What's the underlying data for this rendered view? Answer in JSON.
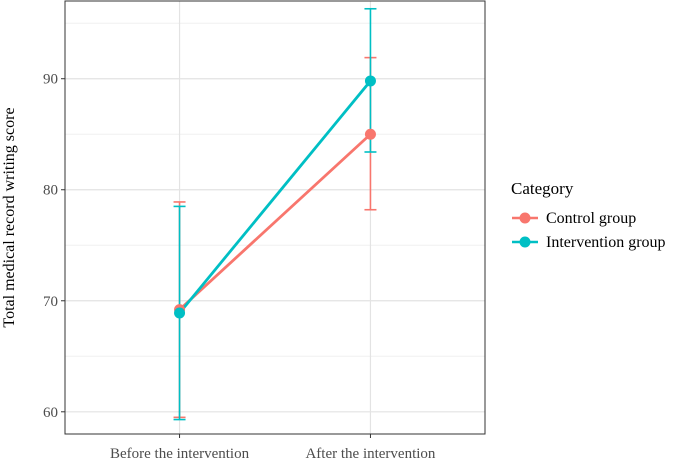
{
  "chart_data": {
    "type": "line",
    "title": "",
    "xlabel": "",
    "ylabel": "Total medical record writing score",
    "categories": [
      "Before the intervention",
      "After the intervention"
    ],
    "ylim": [
      58,
      97
    ],
    "yticks": [
      60,
      70,
      80,
      90
    ],
    "grid": true,
    "legend_title": "Category",
    "legend_position": "right",
    "series": [
      {
        "name": "Control group",
        "color": "#F8766D",
        "values": [
          69.2,
          85.0
        ],
        "error_low": [
          59.5,
          78.2
        ],
        "error_high": [
          78.9,
          91.9
        ]
      },
      {
        "name": "Intervention group",
        "color": "#00BFC4",
        "values": [
          68.9,
          89.8
        ],
        "error_low": [
          59.3,
          83.4
        ],
        "error_high": [
          78.5,
          96.3
        ]
      }
    ]
  }
}
